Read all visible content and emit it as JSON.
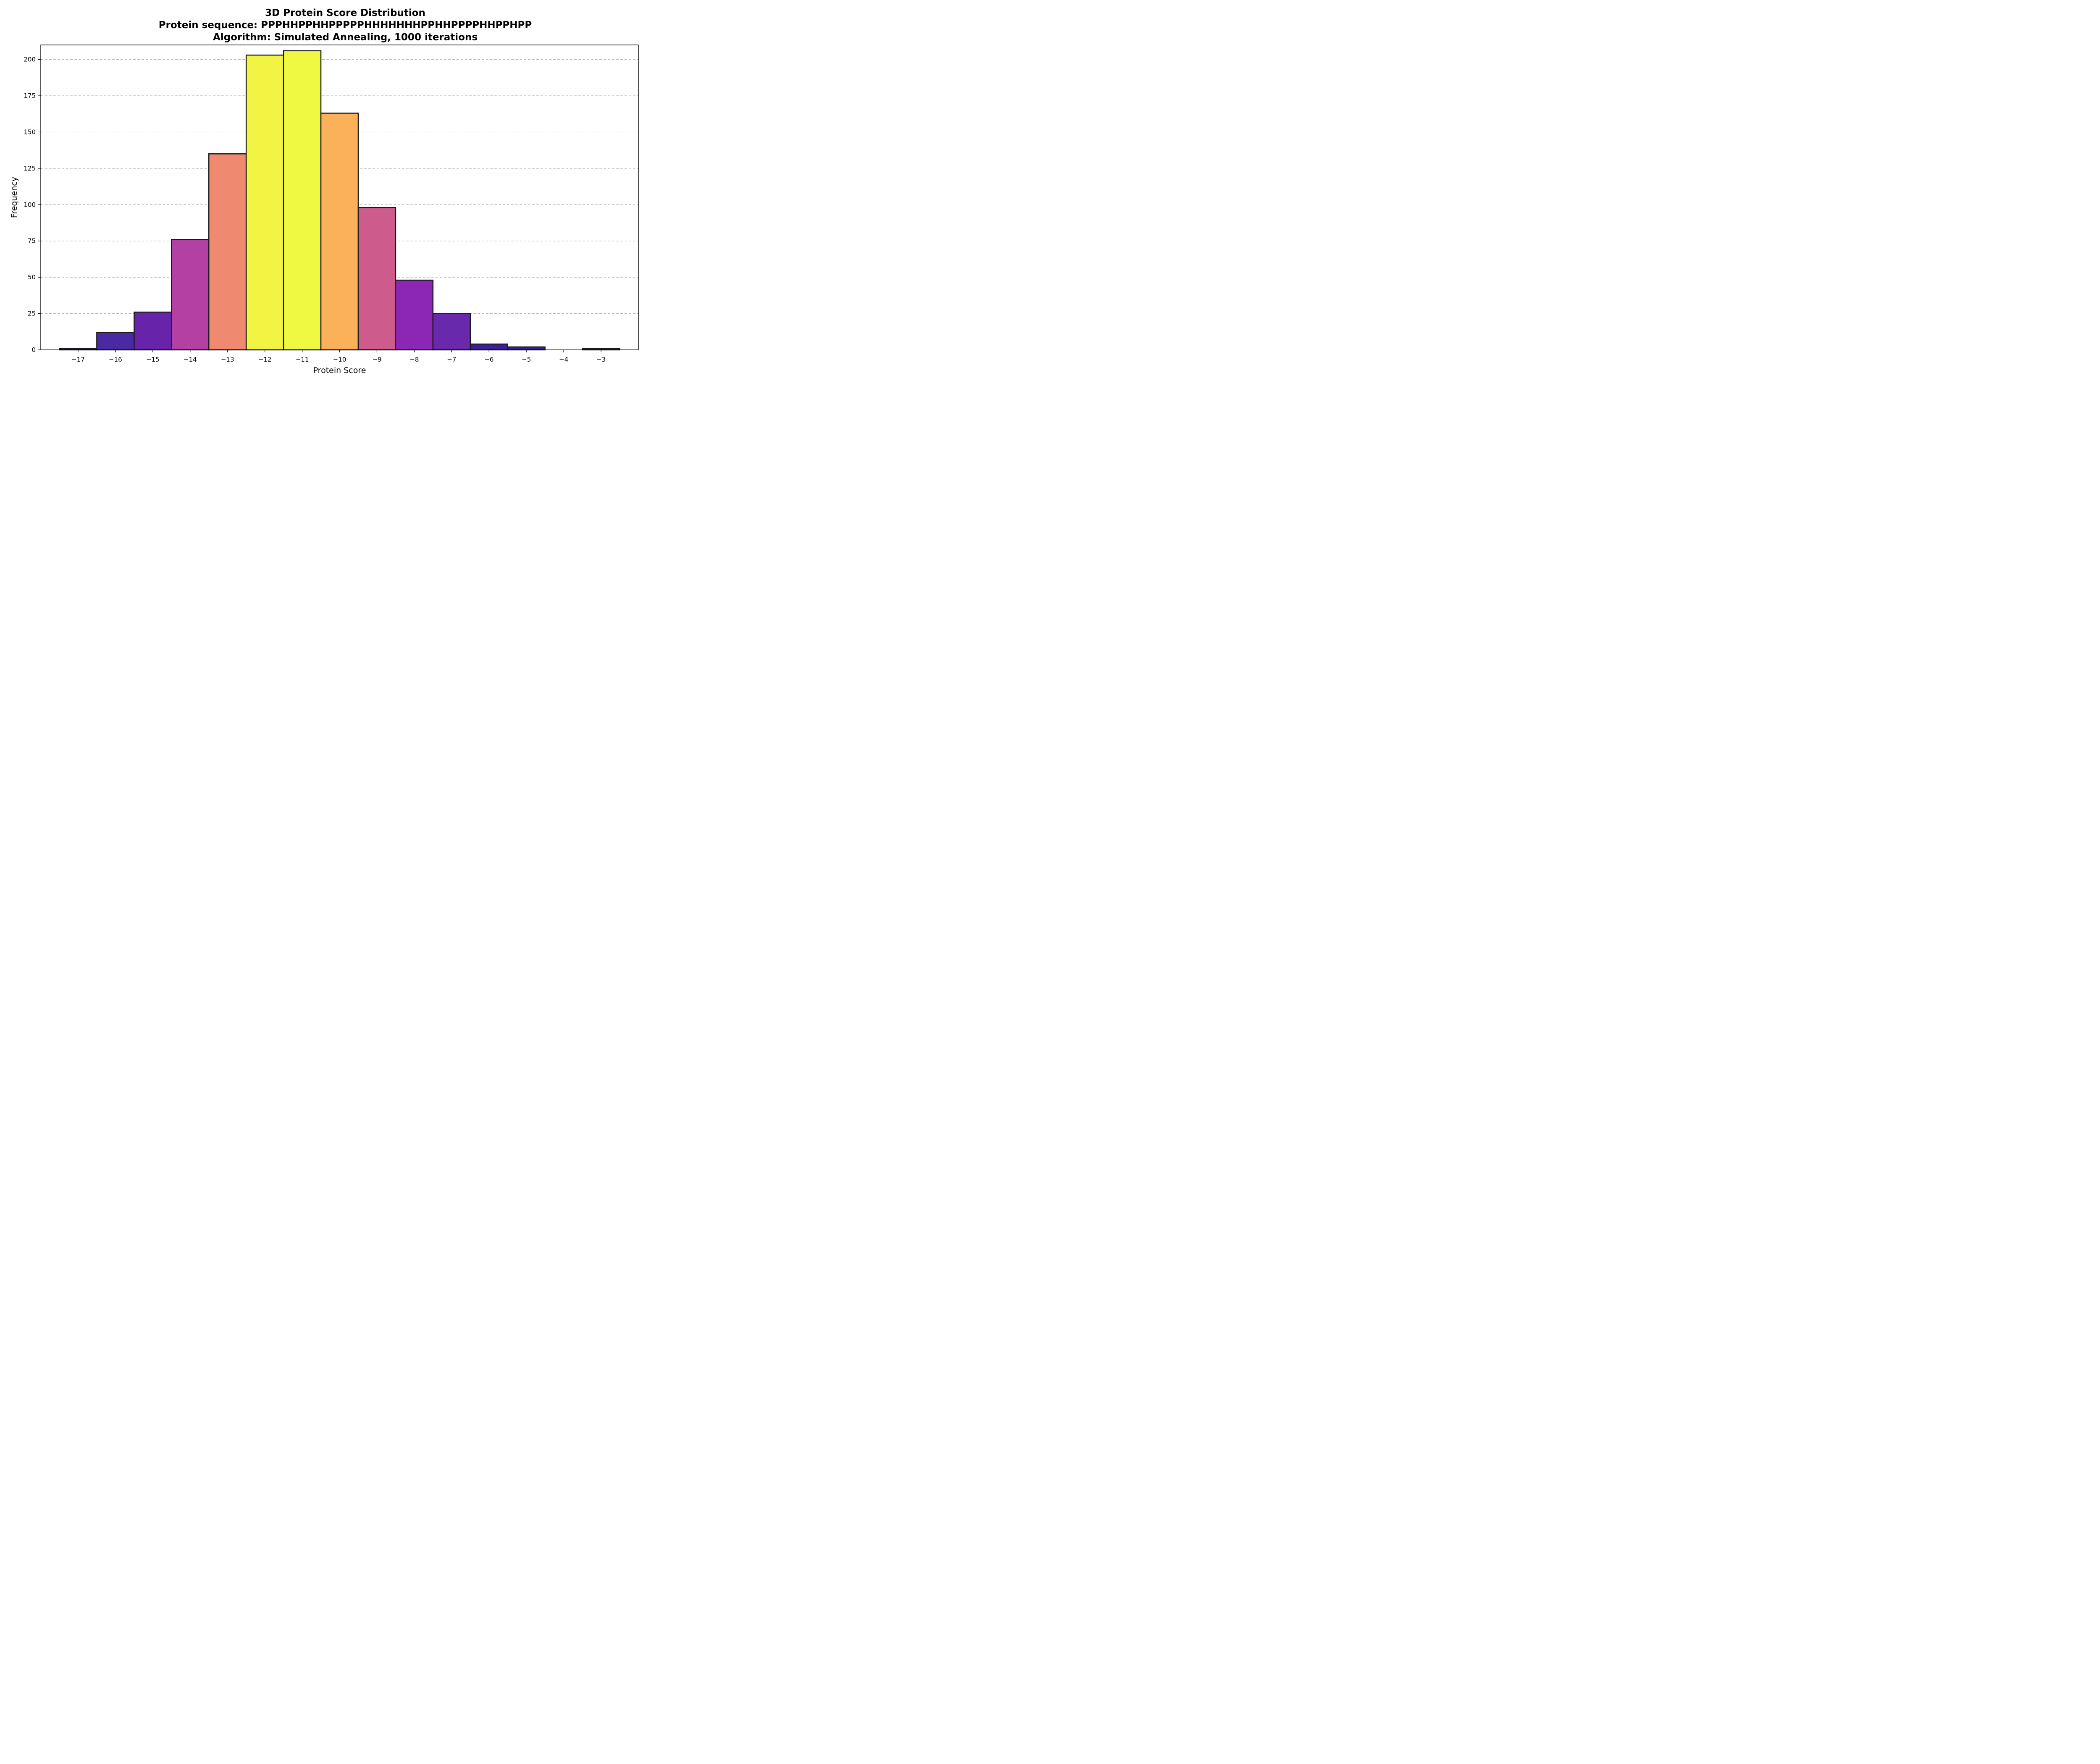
{
  "chart_data": {
    "type": "bar",
    "title": [
      "3D Protein Score Distribution",
      "Protein sequence: PPPHHPPHHPPPPPHHHHHHHPPHHPPPPHHPPHPP",
      "Algorithm: Simulated Annealing, 1000 iterations"
    ],
    "xlabel": "Protein Score",
    "ylabel": "Frequency",
    "x": [
      -17,
      -16,
      -15,
      -14,
      -13,
      -12,
      -11,
      -10,
      -9,
      -8,
      -7,
      -6,
      -5,
      -4,
      -3
    ],
    "values": [
      1,
      12,
      26,
      76,
      135,
      203,
      206,
      163,
      98,
      48,
      25,
      4,
      2,
      0,
      1
    ],
    "colors": [
      "#2c0594",
      "#4a2aa3",
      "#6724ab",
      "#b340a3",
      "#ef8a70",
      "#f2f443",
      "#eff941",
      "#fbb15a",
      "#cd5c8c",
      "#8b26b5",
      "#6a29ad",
      "#3c1f99",
      "#33229a",
      "#1e0a78",
      "#2a1390"
    ],
    "xlim": [
      -18,
      -2
    ],
    "ylim": [
      0,
      210
    ],
    "x_ticks": [
      -17,
      -16,
      -15,
      -14,
      -13,
      -12,
      -11,
      -10,
      -9,
      -8,
      -7,
      -6,
      -5,
      -4,
      -3
    ],
    "x_tick_labels": [
      "−17",
      "−16",
      "−15",
      "−14",
      "−13",
      "−12",
      "−11",
      "−10",
      "−9",
      "−8",
      "−7",
      "−6",
      "−5",
      "−4",
      "−3"
    ],
    "y_ticks": [
      0,
      25,
      50,
      75,
      100,
      125,
      150,
      175,
      200
    ],
    "y_tick_labels": [
      "0",
      "25",
      "50",
      "75",
      "100",
      "125",
      "150",
      "175",
      "200"
    ],
    "grid": "y, dashed"
  }
}
